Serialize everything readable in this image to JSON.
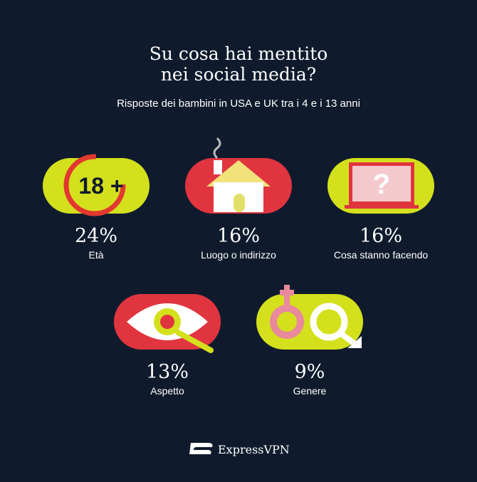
{
  "header": {
    "title_lines": [
      "Su cosa hai mentito",
      "nei social media?"
    ],
    "subtitle": "Risposte dei bambini in USA e UK tra i 4 e i 13 anni"
  },
  "items": [
    {
      "percent": "24%",
      "label": "Età",
      "icon_text": "18 +"
    },
    {
      "percent": "16%",
      "label": "Luogo o indirizzo"
    },
    {
      "percent": "16%",
      "label": "Cosa stanno facendo",
      "icon_text": "?"
    },
    {
      "percent": "13%",
      "label": "Aspetto"
    },
    {
      "percent": "9%",
      "label": "Genere"
    }
  ],
  "footer": {
    "brand": "ExpressVPN"
  }
}
